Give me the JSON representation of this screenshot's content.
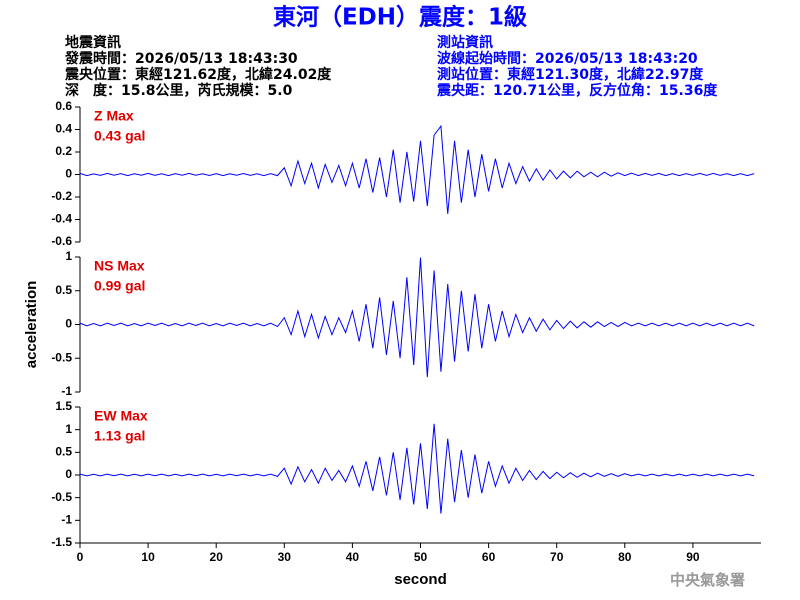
{
  "header": {
    "title": "東河（EDH）震度：1級",
    "left": [
      "地震資訊",
      "發震時間：2026/05/13 18:43:30",
      "震央位置：東經121.62度，北緯24.02度",
      "深　度：15.8公里，芮氏規模：5.0"
    ],
    "right": [
      "測站資訊",
      "波線起始時間：2026/05/13 18:43:20",
      "測站位置：東經121.30度，北緯22.97度",
      "震央距：120.71公里，反方位角：15.36度"
    ],
    "watermark": "中央氣象署"
  },
  "chart_data": [
    {
      "type": "line",
      "annotations": [
        "Z Max",
        "0.43 gal"
      ],
      "x": [
        0,
        1,
        2,
        3,
        4,
        5,
        6,
        7,
        8,
        9,
        10,
        11,
        12,
        13,
        14,
        15,
        16,
        17,
        18,
        19,
        20,
        21,
        22,
        23,
        24,
        25,
        26,
        27,
        28,
        29,
        30,
        31,
        32,
        33,
        34,
        35,
        36,
        37,
        38,
        39,
        40,
        41,
        42,
        43,
        44,
        45,
        46,
        47,
        48,
        49,
        50,
        51,
        52,
        53,
        54,
        55,
        56,
        57,
        58,
        59,
        60,
        61,
        62,
        63,
        64,
        65,
        66,
        67,
        68,
        69,
        70,
        71,
        72,
        73,
        74,
        75,
        76,
        77,
        78,
        79,
        80,
        81,
        82,
        83,
        84,
        85,
        86,
        87,
        88,
        89,
        90,
        91,
        92,
        93,
        94,
        95,
        96,
        97,
        98,
        99
      ],
      "series": [
        {
          "color": "#0000ff",
          "values": [
            0.01,
            -0.01,
            0.005,
            -0.008,
            0.01,
            -0.006,
            0.008,
            -0.01,
            0.006,
            -0.007,
            0.01,
            -0.008,
            0.006,
            -0.01,
            0.008,
            -0.006,
            0.01,
            -0.007,
            0.006,
            -0.009,
            0.008,
            -0.01,
            0.007,
            -0.006,
            0.009,
            -0.008,
            0.006,
            -0.01,
            0.008,
            -0.01,
            0.06,
            -0.1,
            0.12,
            -0.08,
            0.1,
            -0.12,
            0.09,
            -0.07,
            0.08,
            -0.1,
            0.1,
            -0.12,
            0.14,
            -0.16,
            0.15,
            -0.2,
            0.22,
            -0.25,
            0.2,
            -0.24,
            0.3,
            -0.28,
            0.35,
            0.43,
            -0.35,
            0.3,
            -0.25,
            0.22,
            -0.2,
            0.18,
            -0.15,
            0.14,
            -0.12,
            0.1,
            -0.08,
            0.07,
            -0.06,
            0.05,
            -0.05,
            0.04,
            -0.04,
            0.03,
            -0.03,
            0.03,
            -0.02,
            0.02,
            -0.02,
            0.02,
            -0.015,
            0.015,
            -0.01,
            0.012,
            -0.01,
            0.01,
            -0.008,
            0.01,
            -0.01,
            0.008,
            -0.01,
            0.008,
            -0.008,
            0.01,
            -0.008,
            0.01,
            -0.008,
            0.008,
            -0.01,
            0.008,
            -0.01,
            0.008
          ]
        }
      ],
      "xlim": [
        0,
        100
      ],
      "ylim": [
        -0.6,
        0.6
      ],
      "yticks": [
        0.6,
        0.4,
        0.2,
        0,
        -0.2,
        -0.4,
        -0.6
      ]
    },
    {
      "type": "line",
      "annotations": [
        "NS Max",
        "0.99 gal"
      ],
      "ylabel": "acceleration",
      "x": [
        0,
        1,
        2,
        3,
        4,
        5,
        6,
        7,
        8,
        9,
        10,
        11,
        12,
        13,
        14,
        15,
        16,
        17,
        18,
        19,
        20,
        21,
        22,
        23,
        24,
        25,
        26,
        27,
        28,
        29,
        30,
        31,
        32,
        33,
        34,
        35,
        36,
        37,
        38,
        39,
        40,
        41,
        42,
        43,
        44,
        45,
        46,
        47,
        48,
        49,
        50,
        51,
        52,
        53,
        54,
        55,
        56,
        57,
        58,
        59,
        60,
        61,
        62,
        63,
        64,
        65,
        66,
        67,
        68,
        69,
        70,
        71,
        72,
        73,
        74,
        75,
        76,
        77,
        78,
        79,
        80,
        81,
        82,
        83,
        84,
        85,
        86,
        87,
        88,
        89,
        90,
        91,
        92,
        93,
        94,
        95,
        96,
        97,
        98,
        99
      ],
      "series": [
        {
          "color": "#0000ff",
          "values": [
            0.02,
            -0.02,
            0.015,
            -0.02,
            0.02,
            -0.015,
            0.02,
            -0.02,
            0.015,
            -0.02,
            0.02,
            -0.015,
            0.02,
            -0.02,
            0.015,
            -0.02,
            0.02,
            -0.015,
            0.02,
            -0.02,
            0.015,
            -0.02,
            0.02,
            -0.015,
            0.02,
            -0.02,
            0.015,
            -0.02,
            0.02,
            -0.03,
            0.1,
            -0.15,
            0.2,
            -0.18,
            0.15,
            -0.2,
            0.12,
            -0.15,
            0.1,
            -0.12,
            0.2,
            -0.25,
            0.3,
            -0.35,
            0.4,
            -0.45,
            0.35,
            -0.5,
            0.7,
            -0.6,
            0.99,
            -0.78,
            0.8,
            -0.7,
            0.6,
            -0.55,
            0.5,
            -0.4,
            0.45,
            -0.35,
            0.3,
            -0.25,
            0.2,
            -0.18,
            0.15,
            -0.12,
            0.1,
            -0.1,
            0.08,
            -0.08,
            0.06,
            -0.06,
            0.05,
            -0.05,
            0.04,
            -0.04,
            0.04,
            -0.03,
            0.03,
            -0.03,
            0.03,
            -0.02,
            0.02,
            -0.02,
            0.02,
            -0.02,
            0.02,
            -0.02,
            0.02,
            -0.02,
            0.02,
            -0.02,
            0.02,
            -0.02,
            0.02,
            -0.02,
            0.02,
            -0.02,
            0.02,
            -0.02
          ]
        }
      ],
      "xlim": [
        0,
        100
      ],
      "ylim": [
        -1,
        1
      ],
      "yticks": [
        1,
        0.5,
        0,
        -0.5,
        -1
      ]
    },
    {
      "type": "line",
      "annotations": [
        "EW Max",
        "1.13 gal"
      ],
      "xlabel": "second",
      "x": [
        0,
        1,
        2,
        3,
        4,
        5,
        6,
        7,
        8,
        9,
        10,
        11,
        12,
        13,
        14,
        15,
        16,
        17,
        18,
        19,
        20,
        21,
        22,
        23,
        24,
        25,
        26,
        27,
        28,
        29,
        30,
        31,
        32,
        33,
        34,
        35,
        36,
        37,
        38,
        39,
        40,
        41,
        42,
        43,
        44,
        45,
        46,
        47,
        48,
        49,
        50,
        51,
        52,
        53,
        54,
        55,
        56,
        57,
        58,
        59,
        60,
        61,
        62,
        63,
        64,
        65,
        66,
        67,
        68,
        69,
        70,
        71,
        72,
        73,
        74,
        75,
        76,
        77,
        78,
        79,
        80,
        81,
        82,
        83,
        84,
        85,
        86,
        87,
        88,
        89,
        90,
        91,
        92,
        93,
        94,
        95,
        96,
        97,
        98,
        99
      ],
      "series": [
        {
          "color": "#0000ff",
          "values": [
            0.02,
            -0.02,
            0.015,
            -0.02,
            0.02,
            -0.015,
            0.02,
            -0.02,
            0.015,
            -0.02,
            0.02,
            -0.015,
            0.02,
            -0.02,
            0.015,
            -0.02,
            0.02,
            -0.015,
            0.02,
            -0.02,
            0.015,
            -0.02,
            0.02,
            -0.015,
            0.02,
            -0.02,
            0.015,
            -0.02,
            0.02,
            -0.03,
            0.15,
            -0.2,
            0.18,
            -0.15,
            0.12,
            -0.18,
            0.15,
            -0.12,
            0.1,
            -0.15,
            0.2,
            -0.25,
            0.3,
            -0.35,
            0.4,
            -0.45,
            0.5,
            -0.55,
            0.6,
            -0.65,
            0.7,
            -0.75,
            1.13,
            -0.85,
            0.8,
            -0.6,
            0.55,
            -0.5,
            0.45,
            -0.4,
            0.3,
            -0.25,
            0.2,
            -0.18,
            0.15,
            -0.12,
            0.1,
            -0.1,
            0.08,
            -0.08,
            0.06,
            -0.06,
            0.05,
            -0.05,
            0.04,
            -0.04,
            0.04,
            -0.03,
            0.03,
            -0.03,
            0.03,
            -0.02,
            0.02,
            -0.02,
            0.02,
            -0.02,
            0.02,
            -0.02,
            0.02,
            -0.02,
            0.02,
            -0.02,
            0.02,
            -0.02,
            0.02,
            -0.02,
            0.02,
            -0.02,
            0.02,
            -0.02
          ]
        }
      ],
      "xlim": [
        0,
        100
      ],
      "xticks": [
        0,
        10,
        20,
        30,
        40,
        50,
        60,
        70,
        80,
        90
      ],
      "ylim": [
        -1.5,
        1.5
      ],
      "yticks": [
        1.5,
        1,
        0.5,
        0,
        -0.5,
        -1,
        -1.5
      ]
    }
  ]
}
